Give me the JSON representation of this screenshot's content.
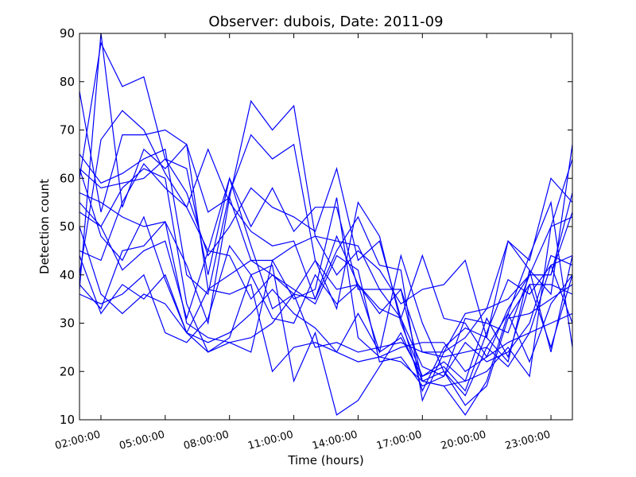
{
  "chart_data": {
    "type": "line",
    "title": "Observer: dubois, Date: 2011-09",
    "xlabel": "Time (hours)",
    "ylabel": "Detection count",
    "ylim": [
      10,
      90
    ],
    "yticks": [
      10,
      20,
      30,
      40,
      50,
      60,
      70,
      80,
      90
    ],
    "xlim": [
      "01:00",
      "24:00"
    ],
    "xticks": [
      "02:00:00",
      "05:00:00",
      "08:00:00",
      "11:00:00",
      "14:00:00",
      "17:00:00",
      "20:00:00",
      "23:00:00"
    ],
    "x": [
      "01:00",
      "02:00",
      "03:00",
      "04:00",
      "05:00",
      "06:00",
      "07:00",
      "08:00",
      "09:00",
      "10:00",
      "11:00",
      "12:00",
      "13:00",
      "14:00",
      "15:00",
      "16:00",
      "17:00",
      "18:00",
      "19:00",
      "20:00",
      "21:00",
      "22:00",
      "23:00",
      "24:00"
    ],
    "color": "#0000ff",
    "grid": false,
    "series": [
      {
        "values": [
          37,
          90,
          54,
          66,
          62,
          67,
          37,
          40,
          43,
          43,
          46,
          48,
          47,
          46,
          37,
          37,
          24,
          24,
          32,
          33,
          35,
          40,
          40,
          57
        ]
      },
      {
        "values": [
          60,
          88,
          79,
          81,
          64,
          62,
          40,
          60,
          50,
          58,
          49,
          54,
          54,
          37,
          37,
          31,
          21,
          19,
          31,
          30,
          28,
          40,
          50,
          64
        ]
      },
      {
        "values": [
          40,
          68,
          74,
          70,
          61,
          54,
          66,
          55,
          49,
          46,
          47,
          35,
          45,
          52,
          42,
          41,
          14,
          24,
          27,
          33,
          47,
          41,
          36,
          67
        ]
      },
      {
        "values": [
          78,
          53,
          69,
          69,
          70,
          67,
          53,
          56,
          76,
          70,
          75,
          48,
          40,
          45,
          41,
          34,
          37,
          38,
          43,
          27,
          47,
          43,
          60,
          55
        ]
      },
      {
        "values": [
          62,
          58,
          59,
          60,
          64,
          57,
          44,
          50,
          58,
          54,
          52,
          49,
          62,
          43,
          47,
          31,
          44,
          31,
          30,
          23,
          33,
          40,
          40,
          53
        ]
      },
      {
        "values": [
          45,
          43,
          55,
          63,
          58,
          54,
          45,
          60,
          46,
          33,
          36,
          43,
          37,
          38,
          33,
          31,
          16,
          25,
          29,
          27,
          22,
          41,
          24,
          44
        ]
      },
      {
        "values": [
          38,
          33,
          45,
          46,
          51,
          42,
          30,
          56,
          43,
          40,
          37,
          34,
          44,
          41,
          22,
          23,
          17,
          19,
          26,
          22,
          24,
          30,
          44,
          42
        ]
      },
      {
        "values": [
          65,
          59,
          61,
          64,
          66,
          40,
          36,
          57,
          69,
          64,
          67,
          43,
          33,
          55,
          48,
          30,
          19,
          21,
          16,
          28,
          39,
          36,
          42,
          30
        ]
      },
      {
        "values": [
          55,
          50,
          58,
          62,
          60,
          34,
          24,
          27,
          40,
          31,
          30,
          40,
          34,
          38,
          24,
          44,
          30,
          20,
          15,
          25,
          32,
          44,
          55,
          25
        ]
      },
      {
        "values": [
          53,
          50,
          41,
          45,
          47,
          31,
          45,
          44,
          35,
          40,
          36,
          35,
          48,
          38,
          32,
          37,
          18,
          20,
          13,
          17,
          31,
          38,
          25,
          40
        ]
      },
      {
        "values": [
          57,
          55,
          52,
          50,
          51,
          30,
          27,
          26,
          27,
          30,
          36,
          25,
          26,
          24,
          25,
          26,
          24,
          23,
          24,
          25,
          21,
          28,
          42,
          44
        ]
      },
      {
        "values": [
          44,
          32,
          38,
          35,
          40,
          28,
          24,
          26,
          24,
          43,
          35,
          37,
          56,
          27,
          23,
          22,
          18,
          17,
          18,
          31,
          23,
          38,
          38,
          36
        ]
      },
      {
        "values": [
          36,
          34,
          36,
          40,
          28,
          26,
          31,
          46,
          40,
          42,
          18,
          28,
          11,
          14,
          21,
          28,
          18,
          17,
          11,
          18,
          32,
          22,
          34,
          40
        ]
      },
      {
        "values": [
          50,
          36,
          32,
          36,
          34,
          28,
          37,
          36,
          38,
          20,
          25,
          26,
          24,
          22,
          23,
          25,
          26,
          26,
          20,
          23,
          26,
          28,
          30,
          32
        ]
      },
      {
        "values": [
          62,
          48,
          43,
          52,
          39,
          28,
          26,
          28,
          32,
          37,
          32,
          29,
          24,
          32,
          24,
          27,
          19,
          22,
          18,
          20,
          25,
          19,
          50,
          52
        ]
      },
      {
        "values": [
          null,
          null,
          null,
          null,
          null,
          null,
          null,
          null,
          null,
          null,
          null,
          null,
          null,
          null,
          null,
          null,
          null,
          null,
          null,
          null,
          31,
          32,
          35,
          38
        ]
      }
    ]
  }
}
